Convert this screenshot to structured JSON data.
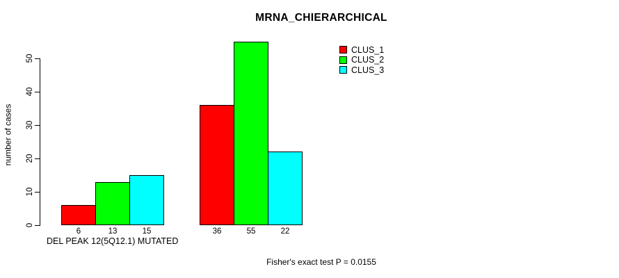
{
  "chart_data": {
    "type": "bar",
    "title": "MRNA_CHIERARCHICAL",
    "ylabel": "number of cases",
    "xlabel": "DEL PEAK 12(5Q12.1) MUTATED",
    "footnote": "Fisher's exact test P = 0.0155",
    "yticks": [
      0,
      10,
      20,
      30,
      40,
      50
    ],
    "ylim": [
      0,
      55
    ],
    "grid": false,
    "bar_value_labels_shown": true,
    "legend_position": "top-right",
    "groups": [
      "group-1",
      "group-2"
    ],
    "group_value_labels": [
      [
        "6",
        "13",
        "15"
      ],
      [
        "36",
        "55",
        "22"
      ]
    ],
    "series": [
      {
        "name": "CLUS_1",
        "color": "#ff0000",
        "values": [
          6,
          36
        ]
      },
      {
        "name": "CLUS_2",
        "color": "#00ff00",
        "values": [
          13,
          55
        ]
      },
      {
        "name": "CLUS_3",
        "color": "#00ffff",
        "values": [
          15,
          22
        ]
      }
    ]
  }
}
